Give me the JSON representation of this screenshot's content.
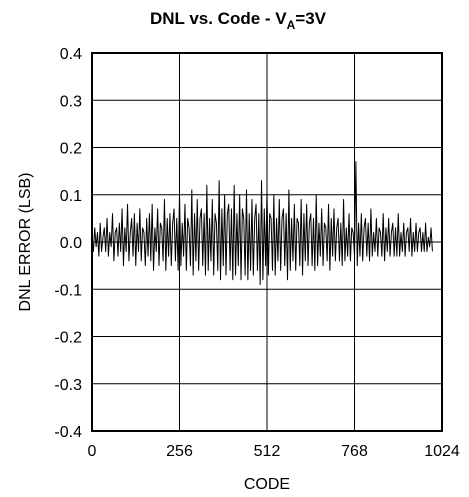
{
  "chart_data": {
    "type": "line",
    "title": "DNL vs. Code - V",
    "title_subscript": "A",
    "title_suffix": "=3V",
    "xlabel": "CODE",
    "ylabel": "DNL ERROR (LSB)",
    "xlim": [
      0,
      1024
    ],
    "ylim": [
      -0.4,
      0.4
    ],
    "x_ticks": [
      0,
      256,
      512,
      768,
      1024
    ],
    "x_tick_labels": [
      "0",
      "256",
      "512",
      "768",
      "1024"
    ],
    "y_ticks": [
      0.4,
      0.3,
      0.2,
      0.1,
      0.0,
      -0.1,
      -0.2,
      -0.3,
      -0.4
    ],
    "y_tick_labels": [
      "0.4",
      "0.3",
      "0.2",
      "0.1",
      "0.0",
      "-0.1",
      "-0.2",
      "-0.3",
      "-0.4"
    ],
    "grid": true,
    "series": [
      {
        "color": "#000000",
        "x_start": 0,
        "x_step": 4,
        "values": [
          0.01,
          -0.02,
          0.03,
          -0.01,
          0.02,
          -0.03,
          0.04,
          -0.02,
          0.01,
          0.03,
          -0.02,
          0.05,
          -0.03,
          0.02,
          -0.01,
          0.06,
          -0.04,
          0.02,
          0.03,
          -0.03,
          0.04,
          -0.02,
          0.07,
          -0.05,
          0.03,
          -0.02,
          0.08,
          -0.04,
          0.02,
          0.05,
          -0.03,
          0.06,
          -0.05,
          0.04,
          -0.02,
          0.07,
          -0.04,
          0.03,
          0.02,
          -0.05,
          0.05,
          -0.03,
          0.06,
          -0.04,
          0.08,
          -0.06,
          0.03,
          -0.02,
          0.07,
          -0.05,
          0.04,
          0.03,
          -0.04,
          0.09,
          -0.06,
          0.05,
          -0.03,
          0.06,
          -0.05,
          0.04,
          0.07,
          -0.04,
          0.05,
          -0.06,
          0.1,
          -0.05,
          0.04,
          -0.03,
          0.08,
          -0.06,
          0.05,
          0.03,
          -0.05,
          0.11,
          -0.07,
          0.06,
          -0.04,
          0.09,
          -0.06,
          0.05,
          0.07,
          -0.05,
          0.06,
          -0.07,
          0.12,
          -0.06,
          0.05,
          -0.04,
          0.09,
          -0.07,
          0.06,
          0.04,
          -0.06,
          0.13,
          -0.08,
          0.07,
          -0.05,
          0.1,
          -0.07,
          0.06,
          0.08,
          -0.06,
          0.07,
          -0.08,
          0.12,
          -0.07,
          0.06,
          -0.05,
          0.1,
          -0.08,
          0.07,
          0.05,
          -0.07,
          0.11,
          -0.08,
          0.06,
          -0.06,
          0.09,
          -0.07,
          0.05,
          0.08,
          -0.06,
          0.06,
          -0.09,
          0.13,
          -0.08,
          0.07,
          -0.05,
          0.11,
          -0.07,
          0.06,
          0.05,
          -0.06,
          0.1,
          -0.07,
          0.05,
          -0.04,
          0.09,
          -0.06,
          0.05,
          0.07,
          -0.05,
          0.06,
          -0.08,
          0.11,
          -0.06,
          0.05,
          -0.04,
          0.08,
          -0.06,
          0.05,
          0.04,
          -0.05,
          0.09,
          -0.07,
          0.06,
          -0.04,
          0.08,
          -0.05,
          0.04,
          0.06,
          -0.05,
          0.05,
          -0.06,
          0.1,
          -0.05,
          0.04,
          -0.03,
          0.07,
          -0.05,
          0.04,
          0.03,
          -0.04,
          0.08,
          -0.06,
          0.05,
          -0.03,
          0.07,
          -0.04,
          0.03,
          0.05,
          -0.04,
          0.04,
          -0.05,
          0.09,
          -0.04,
          0.03,
          -0.03,
          0.06,
          -0.04,
          0.03,
          0.02,
          -0.03,
          0.17,
          -0.05,
          0.04,
          -0.03,
          0.06,
          -0.04,
          0.03,
          0.05,
          -0.03,
          0.04,
          -0.04,
          0.07,
          -0.03,
          0.02,
          -0.02,
          0.05,
          -0.03,
          0.03,
          0.02,
          -0.03,
          0.06,
          -0.04,
          0.03,
          -0.02,
          0.05,
          -0.03,
          0.02,
          0.04,
          -0.03,
          0.03,
          -0.03,
          0.06,
          -0.03,
          0.02,
          -0.02,
          0.04,
          -0.03,
          0.02,
          0.03,
          -0.02,
          0.05,
          -0.03,
          0.02,
          -0.02,
          0.04,
          -0.02,
          0.02,
          0.03,
          -0.02,
          0.02,
          -0.02,
          0.04,
          -0.02,
          0.01,
          -0.01,
          0.03,
          -0.02
        ]
      }
    ]
  }
}
